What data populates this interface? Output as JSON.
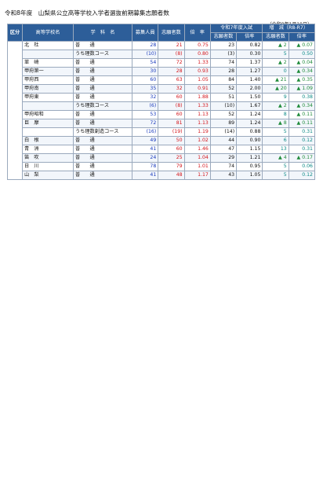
{
  "title": "令和8年度　山梨県公立高等学校入学者選抜前期募集志願者数",
  "date": "（令和8年1月19日）",
  "headers": {
    "section": "区分",
    "school": "高等学校名",
    "course": "学　科　名",
    "quota": "募集人員",
    "applicants": "志願者数",
    "ratio": "倍　率",
    "prev_group": "令和7年度入試",
    "prev_applicants": "志願者数",
    "prev_ratio": "倍率",
    "change_group": "増　減（R8-R7）",
    "change_applicants": "志願者数",
    "change_ratio": "倍率"
  },
  "rows": [
    {
      "school": "北　杜",
      "course": "普　　通",
      "q": "28",
      "a": "21",
      "r": "0.75",
      "pa": "23",
      "pr": "0.82",
      "da": "▲ 2",
      "dr": "▲ 0.07"
    },
    {
      "school": "",
      "course": "うち理数コース",
      "q": "(10)",
      "a": "(8)",
      "r": "0.80",
      "pa": "(3)",
      "pr": "0.30",
      "da": "5",
      "dr": "0.50"
    },
    {
      "school": "韮　崎",
      "course": "普　　通",
      "q": "54",
      "a": "72",
      "r": "1.33",
      "pa": "74",
      "pr": "1.37",
      "da": "▲ 2",
      "dr": "▲ 0.04"
    },
    {
      "school": "甲府第一",
      "course": "普　　通",
      "q": "30",
      "a": "28",
      "r": "0.93",
      "pa": "28",
      "pr": "1.27",
      "da": "0",
      "dr": "▲ 0.34"
    },
    {
      "school": "甲府西",
      "course": "普　　通",
      "q": "60",
      "a": "63",
      "r": "1.05",
      "pa": "84",
      "pr": "1.40",
      "da": "▲ 21",
      "dr": "▲ 0.35"
    },
    {
      "school": "甲府南",
      "course": "普　　通",
      "q": "35",
      "a": "32",
      "r": "0.91",
      "pa": "52",
      "pr": "2.00",
      "da": "▲ 20",
      "dr": "▲ 1.09"
    },
    {
      "school": "甲府東",
      "course": "普　　通",
      "q": "32",
      "a": "60",
      "r": "1.88",
      "pa": "51",
      "pr": "1.50",
      "da": "9",
      "dr": "0.38"
    },
    {
      "school": "",
      "course": "うち理数コース",
      "q": "(6)",
      "a": "(8)",
      "r": "1.33",
      "pa": "(10)",
      "pr": "1.67",
      "da": "▲ 2",
      "dr": "▲ 0.34"
    },
    {
      "school": "甲府昭和",
      "course": "普　　通",
      "q": "53",
      "a": "60",
      "r": "1.13",
      "pa": "52",
      "pr": "1.24",
      "da": "8",
      "dr": "▲ 0.11"
    },
    {
      "school": "巨　摩",
      "course": "普　　通",
      "q": "72",
      "a": "81",
      "r": "1.13",
      "pa": "89",
      "pr": "1.24",
      "da": "▲ 8",
      "dr": "▲ 0.11"
    },
    {
      "school": "",
      "course": "うち理数創造コース",
      "q": "(16)",
      "a": "(19)",
      "r": "1.19",
      "pa": "(14)",
      "pr": "0.88",
      "da": "5",
      "dr": "0.31"
    },
    {
      "school": "白　根",
      "course": "普　　通",
      "q": "49",
      "a": "50",
      "r": "1.02",
      "pa": "44",
      "pr": "0.90",
      "da": "6",
      "dr": "0.12"
    },
    {
      "school": "青　洲",
      "course": "普　　通",
      "q": "41",
      "a": "60",
      "r": "1.46",
      "pa": "47",
      "pr": "1.15",
      "da": "13",
      "dr": "0.31"
    },
    {
      "school": "笛　吹",
      "course": "普　　通",
      "q": "24",
      "a": "25",
      "r": "1.04",
      "pa": "29",
      "pr": "1.21",
      "da": "▲ 4",
      "dr": "▲ 0.17"
    },
    {
      "school": "日　川",
      "course": "普　　通",
      "q": "78",
      "a": "79",
      "r": "1.01",
      "pa": "74",
      "pr": "0.95",
      "da": "5",
      "dr": "0.06"
    },
    {
      "school": "山　梨",
      "course": "普　　通",
      "q": "41",
      "a": "48",
      "r": "1.17",
      "pa": "43",
      "pr": "1.05",
      "da": "5",
      "dr": "0.12"
    }
  ]
}
